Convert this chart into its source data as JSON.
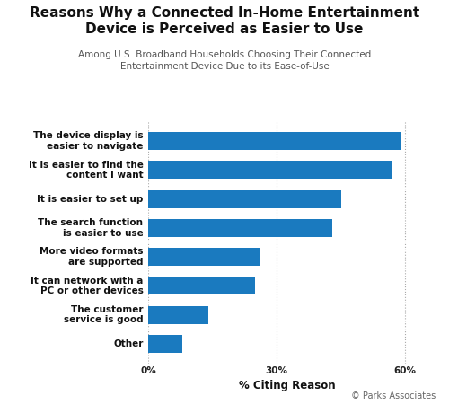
{
  "title_line1": "Reasons Why a Connected In-Home Entertainment",
  "title_line2": "Device is Perceived as Easier to Use",
  "subtitle": "Among U.S. Broadband Households Choosing Their Connected\nEntertainment Device Due to its Ease-of-Use",
  "categories": [
    "The device display is\neasier to navigate",
    "It is easier to find the\ncontent I want",
    "It is easier to set up",
    "The search function\nis easier to use",
    "More video formats\nare supported",
    "It can network with a\nPC or other devices",
    "The customer\nservice is good",
    "Other"
  ],
  "values": [
    59,
    57,
    45,
    43,
    26,
    25,
    14,
    8
  ],
  "bar_color": "#1a7abf",
  "xlabel": "% Citing Reason",
  "xlim": [
    0,
    65
  ],
  "xticks": [
    0,
    30,
    60
  ],
  "xtick_labels": [
    "0%",
    "30%",
    "60%"
  ],
  "background_color": "#ffffff",
  "copyright": "© Parks Associates",
  "title_fontsize": 11,
  "subtitle_fontsize": 7.5,
  "label_fontsize": 7.5,
  "xlabel_fontsize": 8.5,
  "grid_color": "#aaaaaa"
}
